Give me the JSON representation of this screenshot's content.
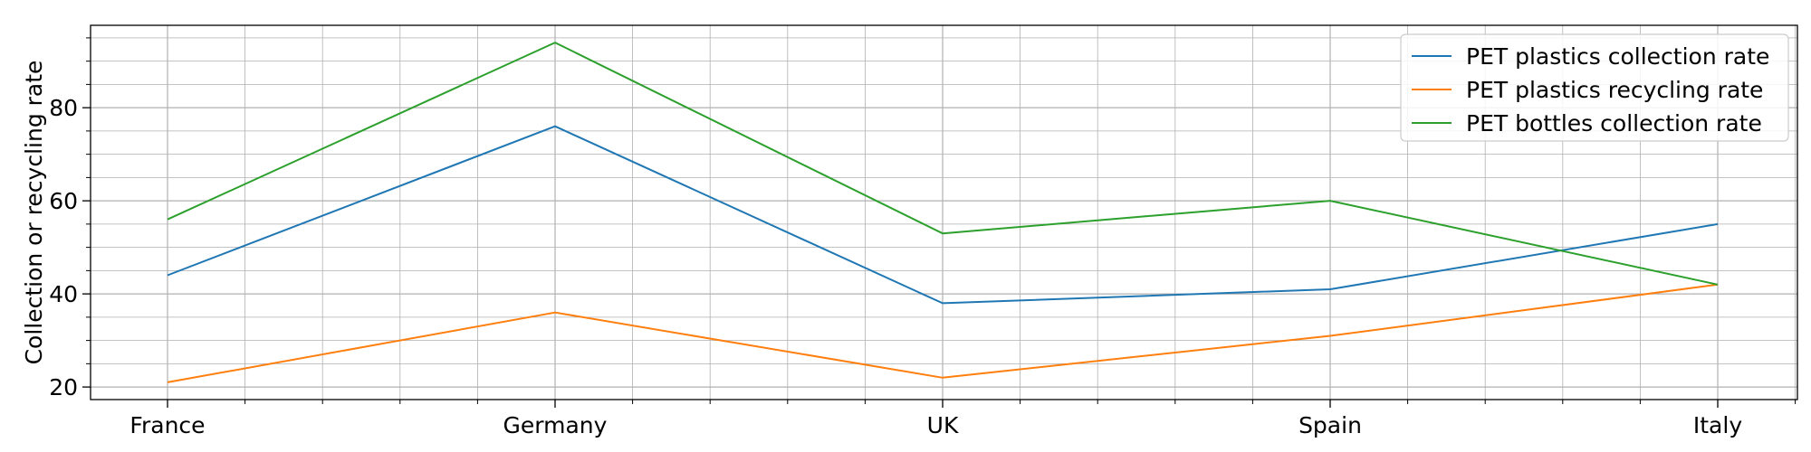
{
  "chart_data": {
    "type": "line",
    "title": "",
    "xlabel": "",
    "ylabel": "Collection or recycling rate",
    "categories": [
      "France",
      "Germany",
      "UK",
      "Spain",
      "Italy"
    ],
    "series": [
      {
        "name": "PET plastics collection rate",
        "color": "#1f77b4",
        "values": [
          44,
          76,
          38,
          41,
          55
        ]
      },
      {
        "name": "PET plastics recycling rate",
        "color": "#ff7f0e",
        "values": [
          21,
          36,
          22,
          31,
          42
        ]
      },
      {
        "name": "PET bottles collection rate",
        "color": "#2ca02c",
        "values": [
          56,
          94,
          53,
          60,
          42
        ]
      }
    ],
    "ylim": [
      17.3,
      97.7
    ],
    "yticks_major": [
      20,
      40,
      60,
      80
    ],
    "grid": true,
    "legend": "top-right"
  }
}
